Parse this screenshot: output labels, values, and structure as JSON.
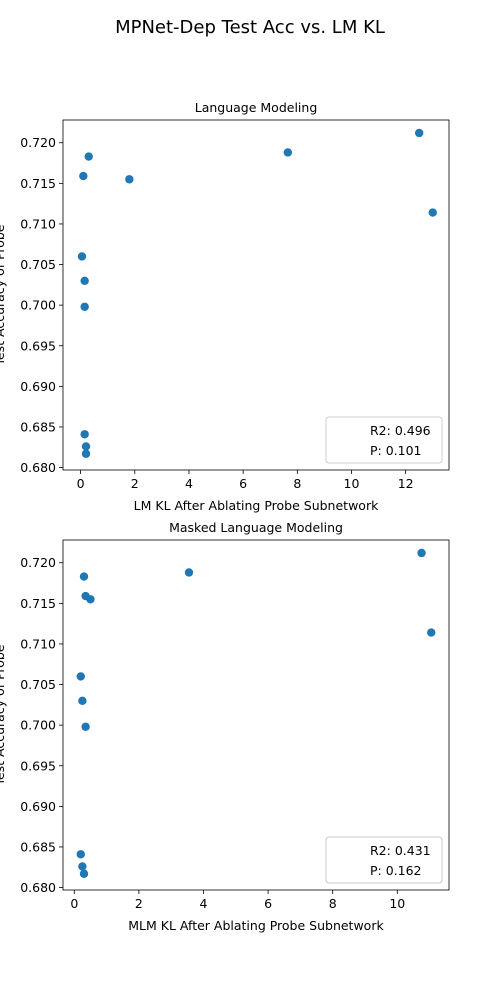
{
  "figure": {
    "title": "MPNet-Dep Test Acc vs. LM KL",
    "point_color": "#1f77b4"
  },
  "chart_data": [
    {
      "type": "scatter",
      "title": "Language Modeling",
      "xlabel": "LM KL After Ablating Probe Subnetwork",
      "ylabel": "Test Accuracy of Probe",
      "xlim": [
        -0.65,
        13.6
      ],
      "ylim": [
        0.6797,
        0.7228
      ],
      "xticks": [
        0,
        2,
        4,
        6,
        8,
        10,
        12
      ],
      "yticks": [
        0.68,
        0.685,
        0.69,
        0.695,
        0.7,
        0.705,
        0.71,
        0.715,
        0.72
      ],
      "grid": false,
      "legend_position": "lower right",
      "legend": [
        "R2: 0.496",
        "P: 0.101"
      ],
      "points": [
        {
          "x": 0.05,
          "y": 0.706
        },
        {
          "x": 0.1,
          "y": 0.7159
        },
        {
          "x": 0.15,
          "y": 0.6841
        },
        {
          "x": 0.15,
          "y": 0.703
        },
        {
          "x": 0.15,
          "y": 0.6998
        },
        {
          "x": 0.2,
          "y": 0.6826
        },
        {
          "x": 0.2,
          "y": 0.6817
        },
        {
          "x": 0.3,
          "y": 0.7183
        },
        {
          "x": 1.8,
          "y": 0.7155
        },
        {
          "x": 7.65,
          "y": 0.7188
        },
        {
          "x": 12.5,
          "y": 0.7212
        },
        {
          "x": 13.0,
          "y": 0.7114
        }
      ]
    },
    {
      "type": "scatter",
      "title": "Masked Language Modeling",
      "xlabel": "MLM KL After Ablating Probe Subnetwork",
      "ylabel": "Test Accuracy of Probe",
      "xlim": [
        -0.35,
        11.6
      ],
      "ylim": [
        0.6797,
        0.7228
      ],
      "xticks": [
        0,
        2,
        4,
        6,
        8,
        10
      ],
      "yticks": [
        0.68,
        0.685,
        0.69,
        0.695,
        0.7,
        0.705,
        0.71,
        0.715,
        0.72
      ],
      "grid": false,
      "legend_position": "lower right",
      "legend": [
        "R2: 0.431",
        "P: 0.162"
      ],
      "points": [
        {
          "x": 0.2,
          "y": 0.706
        },
        {
          "x": 0.2,
          "y": 0.6841
        },
        {
          "x": 0.25,
          "y": 0.703
        },
        {
          "x": 0.25,
          "y": 0.6826
        },
        {
          "x": 0.3,
          "y": 0.7183
        },
        {
          "x": 0.3,
          "y": 0.6817
        },
        {
          "x": 0.35,
          "y": 0.7159
        },
        {
          "x": 0.35,
          "y": 0.6998
        },
        {
          "x": 0.5,
          "y": 0.7155
        },
        {
          "x": 3.55,
          "y": 0.7188
        },
        {
          "x": 10.75,
          "y": 0.7212
        },
        {
          "x": 11.05,
          "y": 0.7114
        }
      ]
    }
  ]
}
